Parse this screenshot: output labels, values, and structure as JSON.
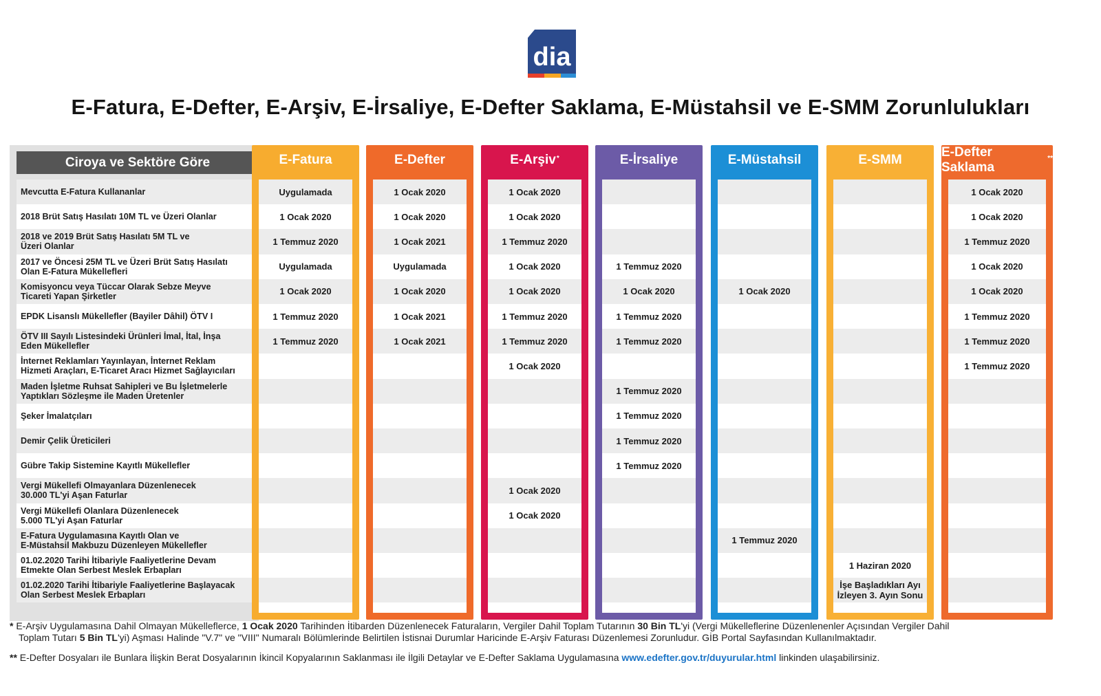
{
  "logo_text": "dia",
  "title": "E-Fatura, E-Defter, E-Arşiv, E-İrsaliye, E-Defter Saklama, E-Müstahsil ve E-SMM Zorunlulukları",
  "row_header": "Ciroya ve Sektöre Göre",
  "columns": [
    {
      "name": "E-Fatura",
      "mark": "",
      "color": "#f7ac2f",
      "values": [
        "Uygulamada",
        "1 Ocak 2020",
        "1 Temmuz 2020",
        "Uygulamada",
        "1 Ocak 2020",
        "1 Temmuz 2020",
        "1 Temmuz 2020",
        "",
        "",
        "",
        "",
        "",
        "",
        "",
        "",
        "",
        ""
      ]
    },
    {
      "name": "E-Defter",
      "mark": "",
      "color": "#ef6a2a",
      "values": [
        "1 Ocak 2020",
        "1 Ocak 2020",
        "1 Ocak 2021",
        "Uygulamada",
        "1 Ocak 2020",
        "1 Ocak 2021",
        "1 Ocak 2021",
        "",
        "",
        "",
        "",
        "",
        "",
        "",
        "",
        "",
        ""
      ]
    },
    {
      "name": "E-Arşiv",
      "mark": "*",
      "color": "#d8154d",
      "values": [
        "1 Ocak 2020",
        "1 Ocak 2020",
        "1 Temmuz 2020",
        "1 Ocak 2020",
        "1 Ocak 2020",
        "1 Temmuz 2020",
        "1 Temmuz 2020",
        "1 Ocak 2020",
        "",
        "",
        "",
        "",
        "1 Ocak 2020",
        "1 Ocak 2020",
        "",
        "",
        ""
      ]
    },
    {
      "name": "E-İrsaliye",
      "mark": "",
      "color": "#6c5ba7",
      "values": [
        "",
        "",
        "",
        "1 Temmuz 2020",
        "1 Ocak 2020",
        "1 Temmuz 2020",
        "1 Temmuz 2020",
        "",
        "1 Temmuz 2020",
        "1 Temmuz 2020",
        "1 Temmuz 2020",
        "1 Temmuz 2020",
        "",
        "",
        "",
        "",
        ""
      ]
    },
    {
      "name": "E-Müstahsil",
      "mark": "",
      "color": "#1c8fd6",
      "values": [
        "",
        "",
        "",
        "",
        "1 Ocak 2020",
        "",
        "",
        "",
        "",
        "",
        "",
        "",
        "",
        "",
        "1 Temmuz 2020",
        "",
        ""
      ]
    },
    {
      "name": "E-SMM",
      "mark": "",
      "color": "#f8b035",
      "values": [
        "",
        "",
        "",
        "",
        "",
        "",
        "",
        "",
        "",
        "",
        "",
        "",
        "",
        "",
        "",
        "1 Haziran 2020",
        "İşe Başladıkları Ayı\nİzleyen 3. Ayın Sonu"
      ]
    },
    {
      "name": "E-Defter Saklama",
      "mark": "**",
      "color": "#ee6a2d",
      "values": [
        "1 Ocak 2020",
        "1 Ocak 2020",
        "1 Temmuz 2020",
        "1 Ocak 2020",
        "1 Ocak 2020",
        "1 Temmuz 2020",
        "1 Temmuz 2020",
        "1 Temmuz 2020",
        "",
        "",
        "",
        "",
        "",
        "",
        "",
        "",
        ""
      ]
    }
  ],
  "rows": [
    "Mevcutta E-Fatura Kullananlar",
    "2018 Brüt Satış Hasılatı 10M TL ve Üzeri Olanlar",
    "2018 ve 2019 Brüt Satış Hasılatı 5M TL ve\nÜzeri Olanlar",
    "2017 ve Öncesi 25M TL ve Üzeri Brüt Satış Hasılatı\nOlan E-Fatura Mükellefleri",
    "Komisyoncu veya Tüccar Olarak Sebze Meyve\nTicareti Yapan Şirketler",
    "EPDK Lisanslı Mükellefler (Bayiler Dâhil)  ÖTV I",
    "ÖTV III Sayılı Listesindeki Ürünleri İmal, İtal, İnşa\nEden Mükellefler",
    "İnternet Reklamları Yayınlayan, İnternet Reklam\nHizmeti Araçları, E-Ticaret Aracı Hizmet Sağlayıcıları",
    "Maden İşletme Ruhsat Sahipleri ve Bu İşletmelerle\nYaptıkları Sözleşme ile Maden Üretenler",
    "Şeker İmalatçıları",
    "Demir Çelik Üreticileri",
    "Gübre Takip Sistemine Kayıtlı Mükellefler",
    "Vergi Mükellefi Olmayanlara Düzenlenecek\n30.000 TL'yi Aşan Faturlar",
    "Vergi Mükellefi Olanlara Düzenlenecek\n5.000 TL'yi Aşan Faturlar",
    "E-Fatura Uygulamasına Kayıtlı Olan ve\nE-Müstahsil Makbuzu Düzenleyen Mükellefler",
    "01.02.2020 Tarihi İtibariyle Faaliyetlerine Devam\nEtmekte Olan Serbest Meslek Erbapları",
    "01.02.2020 Tarihi İtibariyle Faaliyetlerine Başlayacak\nOlan Serbest Meslek Erbapları"
  ],
  "footnotes": {
    "f1_mark": "*",
    "f1_a": " E-Arşiv Uygulamasına Dahil Olmayan Mükelleflerce, ",
    "f1_b": "1 Ocak 2020",
    "f1_c": " Tarihinden İtibarden Düzenlenecek Faturaların, Vergiler Dahil Toplam Tutarının ",
    "f1_d": "30 Bin TL",
    "f1_e": "'yi (Vergi Mükelleflerine Düzenlenenler Açısından Vergiler Dahil",
    "f1_f": "Toplam Tutarı ",
    "f1_g": "5 Bin TL",
    "f1_h": "'yi) Aşması Halinde \"V.7\" ve \"VIII\" Numaralı Bölümlerinde Belirtilen İstisnai Durumlar Haricinde E-Arşiv Faturası Düzenlemesi Zorunludur. GİB Portal Sayfasından Kullanılmaktadır.",
    "f2_mark": "**",
    "f2_a": " E-Defter Dosyaları ile Bunlara İlişkin Berat Dosyalarının İkincil Kopyalarının Saklanması ile İlgili Detaylar ve E-Defter Saklama Uygulamasına ",
    "f2_link": "www.edefter.gov.tr/duyurular.html",
    "f2_b": " linkinden ulaşabilirsiniz."
  }
}
